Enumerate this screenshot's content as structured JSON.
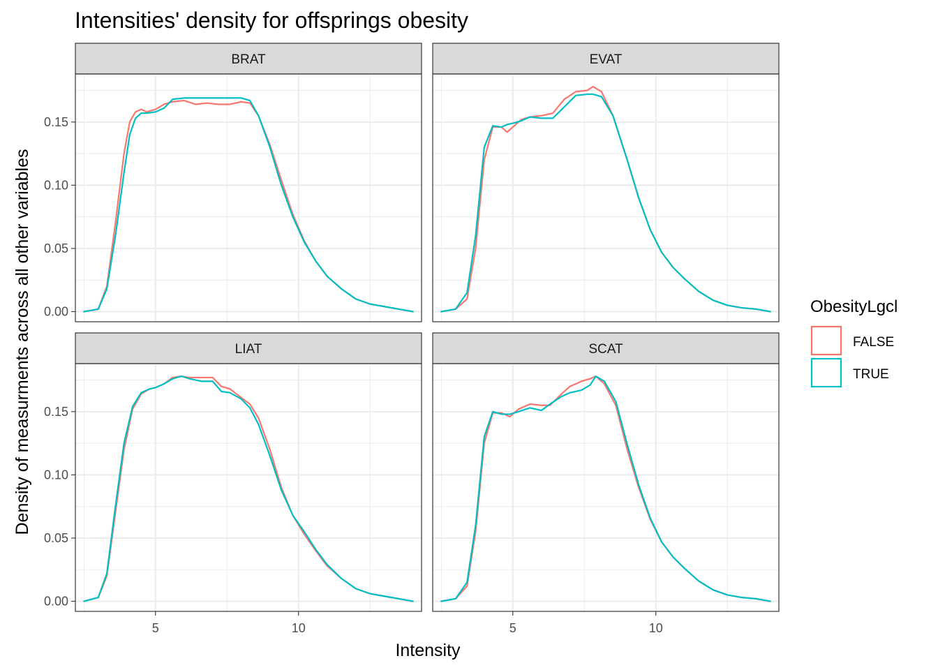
{
  "chart_data": {
    "type": "line",
    "title": "Intensities' density for offsprings obesity",
    "xlabel": "Intensity",
    "ylabel": "Density of measurments across all other variables",
    "xlim": [
      2.2,
      14.3
    ],
    "ylim": [
      -0.008,
      0.188
    ],
    "x_ticks": [
      5,
      10
    ],
    "x_tick_labels": [
      "5",
      "10"
    ],
    "y_ticks": [
      0.0,
      0.05,
      0.1,
      0.15
    ],
    "y_tick_labels": [
      "0.00",
      "0.05",
      "0.10",
      "0.15"
    ],
    "grid": true,
    "legend": {
      "title": "ObesityLgcl",
      "position": "right",
      "entries": [
        {
          "label": "FALSE",
          "color": "#F8766D"
        },
        {
          "label": "TRUE",
          "color": "#00BFC4"
        }
      ]
    },
    "panels": [
      {
        "label": "BRAT",
        "series": [
          {
            "name": "FALSE",
            "color": "#F8766D",
            "x": [
              2.5,
              3.0,
              3.3,
              3.6,
              3.9,
              4.1,
              4.3,
              4.5,
              4.7,
              5.0,
              5.3,
              5.6,
              6.0,
              6.4,
              6.8,
              7.2,
              7.6,
              8.0,
              8.3,
              8.6,
              9.0,
              9.4,
              9.8,
              10.2,
              10.6,
              11.0,
              11.5,
              12.0,
              12.5,
              13.0,
              13.5,
              14.0
            ],
            "y": [
              0.0,
              0.002,
              0.02,
              0.07,
              0.125,
              0.15,
              0.158,
              0.16,
              0.158,
              0.16,
              0.164,
              0.166,
              0.167,
              0.164,
              0.165,
              0.164,
              0.164,
              0.166,
              0.165,
              0.155,
              0.132,
              0.104,
              0.077,
              0.056,
              0.04,
              0.028,
              0.018,
              0.01,
              0.006,
              0.004,
              0.002,
              0.0
            ]
          },
          {
            "name": "TRUE",
            "color": "#00BFC4",
            "x": [
              2.5,
              3.0,
              3.3,
              3.6,
              3.9,
              4.1,
              4.3,
              4.5,
              4.7,
              5.0,
              5.3,
              5.6,
              6.0,
              6.4,
              6.8,
              7.2,
              7.6,
              8.0,
              8.3,
              8.6,
              9.0,
              9.4,
              9.8,
              10.2,
              10.6,
              11.0,
              11.5,
              12.0,
              12.5,
              13.0,
              13.5,
              14.0
            ],
            "y": [
              0.0,
              0.002,
              0.018,
              0.06,
              0.11,
              0.14,
              0.153,
              0.157,
              0.157,
              0.158,
              0.161,
              0.168,
              0.169,
              0.169,
              0.169,
              0.169,
              0.169,
              0.169,
              0.167,
              0.155,
              0.13,
              0.1,
              0.075,
              0.055,
              0.04,
              0.028,
              0.018,
              0.01,
              0.006,
              0.004,
              0.002,
              0.0
            ]
          }
        ]
      },
      {
        "label": "EVAT",
        "series": [
          {
            "name": "FALSE",
            "color": "#F8766D",
            "x": [
              2.5,
              3.0,
              3.4,
              3.7,
              4.0,
              4.3,
              4.6,
              4.8,
              5.0,
              5.3,
              5.6,
              6.0,
              6.4,
              6.8,
              7.2,
              7.6,
              7.8,
              8.1,
              8.5,
              9.0,
              9.4,
              9.8,
              10.2,
              10.6,
              11.0,
              11.5,
              12.0,
              12.5,
              13.0,
              13.5,
              14.0
            ],
            "y": [
              0.0,
              0.002,
              0.01,
              0.05,
              0.12,
              0.146,
              0.146,
              0.142,
              0.146,
              0.152,
              0.154,
              0.155,
              0.157,
              0.168,
              0.174,
              0.175,
              0.178,
              0.174,
              0.155,
              0.12,
              0.09,
              0.065,
              0.047,
              0.035,
              0.026,
              0.016,
              0.009,
              0.005,
              0.003,
              0.002,
              0.0
            ]
          },
          {
            "name": "TRUE",
            "color": "#00BFC4",
            "x": [
              2.5,
              3.0,
              3.4,
              3.7,
              4.0,
              4.3,
              4.6,
              4.8,
              5.0,
              5.3,
              5.6,
              6.0,
              6.4,
              6.8,
              7.2,
              7.6,
              7.8,
              8.1,
              8.5,
              9.0,
              9.4,
              9.8,
              10.2,
              10.6,
              11.0,
              11.5,
              12.0,
              12.5,
              13.0,
              13.5,
              14.0
            ],
            "y": [
              0.0,
              0.002,
              0.015,
              0.06,
              0.13,
              0.147,
              0.146,
              0.148,
              0.149,
              0.151,
              0.154,
              0.153,
              0.153,
              0.162,
              0.171,
              0.172,
              0.172,
              0.17,
              0.155,
              0.12,
              0.09,
              0.065,
              0.047,
              0.035,
              0.026,
              0.016,
              0.009,
              0.005,
              0.003,
              0.002,
              0.0
            ]
          }
        ]
      },
      {
        "label": "LIAT",
        "series": [
          {
            "name": "FALSE",
            "color": "#F8766D",
            "x": [
              2.5,
              3.0,
              3.3,
              3.6,
              3.9,
              4.2,
              4.5,
              4.8,
              5.0,
              5.3,
              5.6,
              5.9,
              6.2,
              6.6,
              7.0,
              7.3,
              7.6,
              8.0,
              8.3,
              8.6,
              9.0,
              9.4,
              9.8,
              10.2,
              10.6,
              11.0,
              11.5,
              12.0,
              12.5,
              13.0,
              13.5,
              14.0
            ],
            "y": [
              0.0,
              0.003,
              0.02,
              0.07,
              0.12,
              0.152,
              0.164,
              0.168,
              0.169,
              0.172,
              0.177,
              0.178,
              0.177,
              0.177,
              0.177,
              0.17,
              0.168,
              0.161,
              0.156,
              0.145,
              0.12,
              0.09,
              0.068,
              0.053,
              0.04,
              0.028,
              0.018,
              0.01,
              0.006,
              0.004,
              0.002,
              0.0
            ]
          },
          {
            "name": "TRUE",
            "color": "#00BFC4",
            "x": [
              2.5,
              3.0,
              3.3,
              3.6,
              3.9,
              4.2,
              4.5,
              4.8,
              5.0,
              5.3,
              5.6,
              5.9,
              6.2,
              6.6,
              7.0,
              7.3,
              7.6,
              8.0,
              8.3,
              8.6,
              9.0,
              9.4,
              9.8,
              10.2,
              10.6,
              11.0,
              11.5,
              12.0,
              12.5,
              13.0,
              13.5,
              14.0
            ],
            "y": [
              0.0,
              0.003,
              0.022,
              0.075,
              0.125,
              0.154,
              0.165,
              0.168,
              0.169,
              0.172,
              0.176,
              0.178,
              0.176,
              0.174,
              0.174,
              0.166,
              0.165,
              0.16,
              0.153,
              0.14,
              0.115,
              0.088,
              0.068,
              0.055,
              0.041,
              0.029,
              0.018,
              0.01,
              0.006,
              0.004,
              0.002,
              0.0
            ]
          }
        ]
      },
      {
        "label": "SCAT",
        "series": [
          {
            "name": "FALSE",
            "color": "#F8766D",
            "x": [
              2.5,
              3.0,
              3.4,
              3.7,
              4.0,
              4.3,
              4.6,
              4.9,
              5.2,
              5.6,
              6.0,
              6.3,
              6.7,
              7.0,
              7.4,
              7.7,
              7.9,
              8.2,
              8.6,
              9.0,
              9.4,
              9.8,
              10.2,
              10.6,
              11.0,
              11.5,
              12.0,
              12.5,
              13.0,
              13.5,
              14.0
            ],
            "y": [
              0.0,
              0.002,
              0.012,
              0.055,
              0.125,
              0.149,
              0.149,
              0.146,
              0.152,
              0.156,
              0.155,
              0.155,
              0.164,
              0.17,
              0.174,
              0.176,
              0.178,
              0.172,
              0.155,
              0.12,
              0.09,
              0.065,
              0.047,
              0.035,
              0.026,
              0.016,
              0.009,
              0.005,
              0.003,
              0.002,
              0.0
            ]
          },
          {
            "name": "TRUE",
            "color": "#00BFC4",
            "x": [
              2.5,
              3.0,
              3.4,
              3.7,
              4.0,
              4.3,
              4.6,
              4.9,
              5.2,
              5.6,
              6.0,
              6.3,
              6.7,
              7.0,
              7.4,
              7.7,
              7.9,
              8.2,
              8.6,
              9.0,
              9.4,
              9.8,
              10.2,
              10.6,
              11.0,
              11.5,
              12.0,
              12.5,
              13.0,
              13.5,
              14.0
            ],
            "y": [
              0.0,
              0.002,
              0.015,
              0.06,
              0.13,
              0.15,
              0.148,
              0.148,
              0.15,
              0.153,
              0.151,
              0.156,
              0.162,
              0.165,
              0.167,
              0.171,
              0.178,
              0.174,
              0.158,
              0.124,
              0.092,
              0.066,
              0.047,
              0.035,
              0.026,
              0.016,
              0.009,
              0.005,
              0.003,
              0.002,
              0.0
            ]
          }
        ]
      }
    ]
  }
}
